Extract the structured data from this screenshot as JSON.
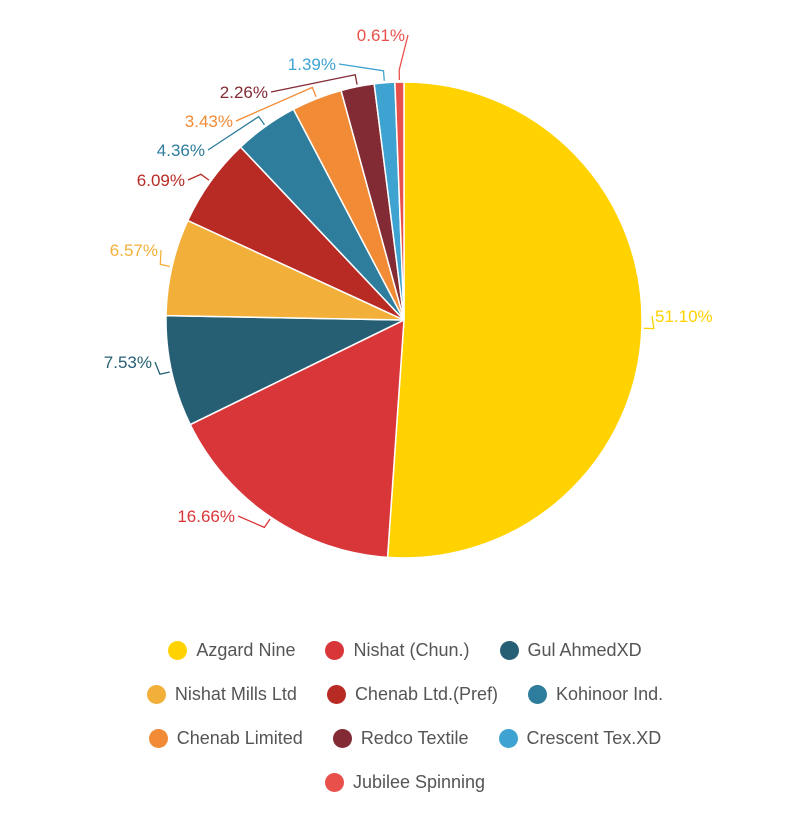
{
  "chart_data": {
    "type": "pie",
    "title": "",
    "categories": [
      "Azgard Nine",
      "Nishat (Chun.)",
      "Gul AhmedXD",
      "Nishat Mills Ltd",
      "Chenab Ltd.(Pref)",
      "Kohinoor Ind.",
      "Chenab Limited",
      "Redco Textile",
      "Crescent Tex.XD",
      "Jubilee Spinning"
    ],
    "values": [
      51.1,
      16.66,
      7.53,
      6.57,
      6.09,
      4.36,
      3.43,
      2.26,
      1.39,
      0.61
    ],
    "labels": [
      "51.10%",
      "16.66%",
      "7.53%",
      "6.57%",
      "6.09%",
      "4.36%",
      "3.43%",
      "2.26%",
      "1.39%",
      "0.61%"
    ],
    "colors": [
      "#ffd200",
      "#d9363a",
      "#265f74",
      "#f2b03a",
      "#b82b25",
      "#2e7d9c",
      "#f18b35",
      "#822b34",
      "#3ea3d0",
      "#e8504c"
    ],
    "legend_position": "bottom"
  },
  "legend": {
    "items": [
      {
        "label": "Azgard Nine",
        "color": "#ffd200"
      },
      {
        "label": "Nishat (Chun.)",
        "color": "#d9363a"
      },
      {
        "label": "Gul AhmedXD",
        "color": "#265f74"
      },
      {
        "label": "Nishat Mills Ltd",
        "color": "#f2b03a"
      },
      {
        "label": "Chenab Ltd.(Pref)",
        "color": "#b82b25"
      },
      {
        "label": "Kohinoor Ind.",
        "color": "#2e7d9c"
      },
      {
        "label": "Chenab Limited",
        "color": "#f18b35"
      },
      {
        "label": "Redco Textile",
        "color": "#822b34"
      },
      {
        "label": "Crescent Tex.XD",
        "color": "#3ea3d0"
      },
      {
        "label": "Jubilee Spinning",
        "color": "#e8504c"
      }
    ]
  }
}
